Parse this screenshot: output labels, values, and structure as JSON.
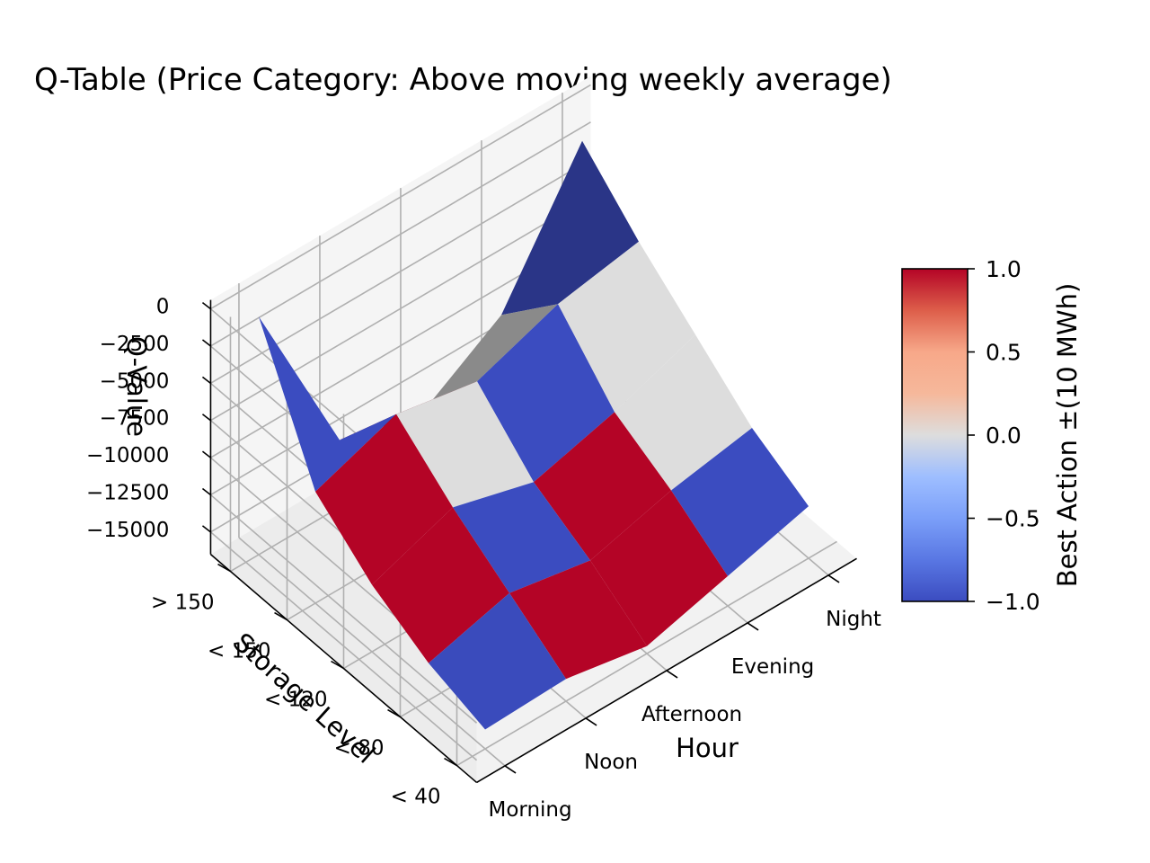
{
  "chart_data": {
    "type": "surface3d",
    "title": "Q-Table (Price Category: Above moving weekly average)",
    "xlabel": "Hour",
    "ylabel": "Storage Level",
    "zlabel": "Q-Value",
    "x_categories": [
      "Morning",
      "Noon",
      "Afternoon",
      "Evening",
      "Night"
    ],
    "y_categories": [
      "< 40",
      "< 80",
      "< 120",
      "< 150",
      "> 150"
    ],
    "z_ticks": [
      0,
      -2500,
      -5000,
      -7500,
      -10000,
      -12500,
      -15000
    ],
    "z_tick_labels": [
      "0",
      "−2500",
      "−5000",
      "−7500",
      "−10000",
      "−12500",
      "−15000"
    ],
    "zlim": [
      -16500,
      600
    ],
    "grid": true,
    "q_values_rows_by_storage": [
      [
        -15200,
        -15000,
        -16000,
        -14500,
        -13000
      ],
      [
        -14000,
        -12500,
        -13500,
        -12000,
        -11000
      ],
      [
        -12000,
        -10000,
        -11500,
        -10000,
        -8000
      ],
      [
        -9000,
        -7000,
        -8000,
        -6000,
        -5000
      ],
      [
        -500,
        -12000,
        -13500,
        -10000,
        -1500
      ]
    ],
    "face_best_action": [
      [
        -1,
        1,
        1,
        -1
      ],
      [
        1,
        -1,
        1,
        0
      ],
      [
        1,
        0,
        -1,
        0
      ],
      [
        -1,
        1,
        0,
        -1
      ],
      [
        0,
        0,
        0,
        -1
      ]
    ],
    "colorbar": {
      "label": "Best Action ±(10 MWh)",
      "range": [
        -1.0,
        1.0
      ],
      "ticks": [
        1.0,
        0.5,
        0.0,
        -0.5,
        -1.0
      ],
      "tick_labels": [
        "1.0",
        "0.5",
        "0.0",
        "−0.5",
        "−1.0"
      ],
      "colormap": "coolwarm"
    },
    "colors": {
      "cool": "#3b4cc0",
      "neutral": "#dddddd",
      "warm": "#b40426",
      "pane": "#f2f2f2",
      "grid": "#b0b0b0"
    }
  }
}
